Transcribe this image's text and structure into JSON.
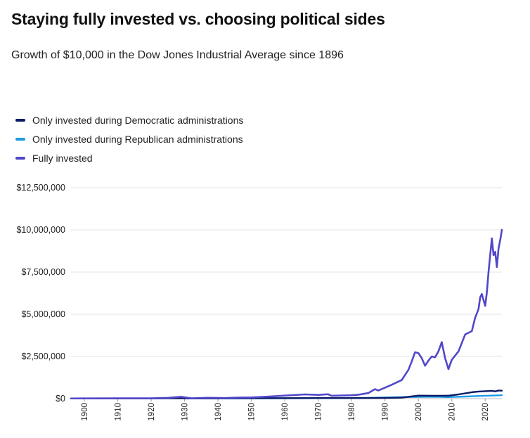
{
  "header": {
    "title": "Staying fully invested vs. choosing political sides",
    "subtitle": "Growth of $10,000 in the Dow Jones Industrial Average since 1896"
  },
  "colors": {
    "democratic": "#0b1a66",
    "republican": "#1f9be6",
    "fully": "#5147c9",
    "grid": "#e3e3e3"
  },
  "chart_data": {
    "type": "line",
    "title": "Staying fully invested vs. choosing political sides",
    "subtitle": "Growth of $10,000 in the Dow Jones Industrial Average since 1896",
    "xlabel": "",
    "ylabel": "",
    "xlim": [
      1896,
      2025
    ],
    "ylim": [
      0,
      12500000
    ],
    "x_ticks": [
      "1900",
      "1910",
      "1920",
      "1930",
      "1940",
      "1950",
      "1960",
      "1970",
      "1980",
      "1990",
      "2000",
      "2010",
      "2020"
    ],
    "y_ticks": [
      "$0",
      "$2,500,000",
      "$5,000,000",
      "$7,500,000",
      "$10,000,000",
      "$12,500,000"
    ],
    "y_tick_values": [
      0,
      2500000,
      5000000,
      7500000,
      10000000,
      12500000
    ],
    "grid": true,
    "legend_position": "top-left",
    "series": [
      {
        "name": "Only invested during Democratic administrations",
        "color_key": "democratic",
        "points": [
          [
            1896,
            10000
          ],
          [
            1920,
            14000
          ],
          [
            1929,
            20000
          ],
          [
            1932,
            10000
          ],
          [
            1950,
            25000
          ],
          [
            1960,
            30000
          ],
          [
            1970,
            32000
          ],
          [
            1980,
            35000
          ],
          [
            1990,
            40000
          ],
          [
            1995,
            60000
          ],
          [
            2000,
            180000
          ],
          [
            2005,
            170000
          ],
          [
            2009,
            175000
          ],
          [
            2012,
            250000
          ],
          [
            2016,
            380000
          ],
          [
            2018,
            420000
          ],
          [
            2020,
            440000
          ],
          [
            2022,
            460000
          ],
          [
            2023,
            430000
          ],
          [
            2024,
            480000
          ],
          [
            2025,
            470000
          ]
        ]
      },
      {
        "name": "Only invested during Republican administrations",
        "color_key": "republican",
        "points": [
          [
            1896,
            10000
          ],
          [
            1920,
            15000
          ],
          [
            1929,
            40000
          ],
          [
            1932,
            8000
          ],
          [
            1950,
            12000
          ],
          [
            1960,
            20000
          ],
          [
            1970,
            30000
          ],
          [
            1980,
            35000
          ],
          [
            1985,
            45000
          ],
          [
            1990,
            70000
          ],
          [
            1995,
            90000
          ],
          [
            2000,
            100000
          ],
          [
            2005,
            110000
          ],
          [
            2009,
            90000
          ],
          [
            2015,
            130000
          ],
          [
            2018,
            160000
          ],
          [
            2020,
            170000
          ],
          [
            2025,
            200000
          ]
        ]
      },
      {
        "name": "Fully invested",
        "color_key": "fully",
        "points": [
          [
            1896,
            10000
          ],
          [
            1900,
            15000
          ],
          [
            1910,
            18000
          ],
          [
            1920,
            20000
          ],
          [
            1925,
            45000
          ],
          [
            1929,
            110000
          ],
          [
            1932,
            20000
          ],
          [
            1937,
            50000
          ],
          [
            1942,
            35000
          ],
          [
            1946,
            60000
          ],
          [
            1950,
            70000
          ],
          [
            1955,
            120000
          ],
          [
            1960,
            180000
          ],
          [
            1966,
            250000
          ],
          [
            1970,
            220000
          ],
          [
            1973,
            260000
          ],
          [
            1974,
            170000
          ],
          [
            1980,
            200000
          ],
          [
            1982,
            230000
          ],
          [
            1985,
            330000
          ],
          [
            1987,
            560000
          ],
          [
            1988,
            480000
          ],
          [
            1990,
            650000
          ],
          [
            1992,
            820000
          ],
          [
            1995,
            1100000
          ],
          [
            1997,
            1700000
          ],
          [
            1998,
            2200000
          ],
          [
            1999,
            2750000
          ],
          [
            2000,
            2700000
          ],
          [
            2001,
            2400000
          ],
          [
            2002,
            1950000
          ],
          [
            2003,
            2250000
          ],
          [
            2004,
            2500000
          ],
          [
            2005,
            2450000
          ],
          [
            2006,
            2800000
          ],
          [
            2007,
            3350000
          ],
          [
            2008,
            2400000
          ],
          [
            2009,
            1750000
          ],
          [
            2010,
            2300000
          ],
          [
            2011,
            2550000
          ],
          [
            2012,
            2800000
          ],
          [
            2013,
            3300000
          ],
          [
            2014,
            3800000
          ],
          [
            2015,
            3900000
          ],
          [
            2016,
            4000000
          ],
          [
            2017,
            4800000
          ],
          [
            2018,
            5300000
          ],
          [
            2018.5,
            6000000
          ],
          [
            2019,
            6200000
          ],
          [
            2020,
            5500000
          ],
          [
            2020.5,
            6300000
          ],
          [
            2021,
            7500000
          ],
          [
            2022,
            9500000
          ],
          [
            2022.5,
            8500000
          ],
          [
            2023,
            8700000
          ],
          [
            2023.5,
            7800000
          ],
          [
            2024,
            8900000
          ],
          [
            2024.5,
            9400000
          ],
          [
            2025,
            10000000
          ]
        ]
      }
    ]
  }
}
